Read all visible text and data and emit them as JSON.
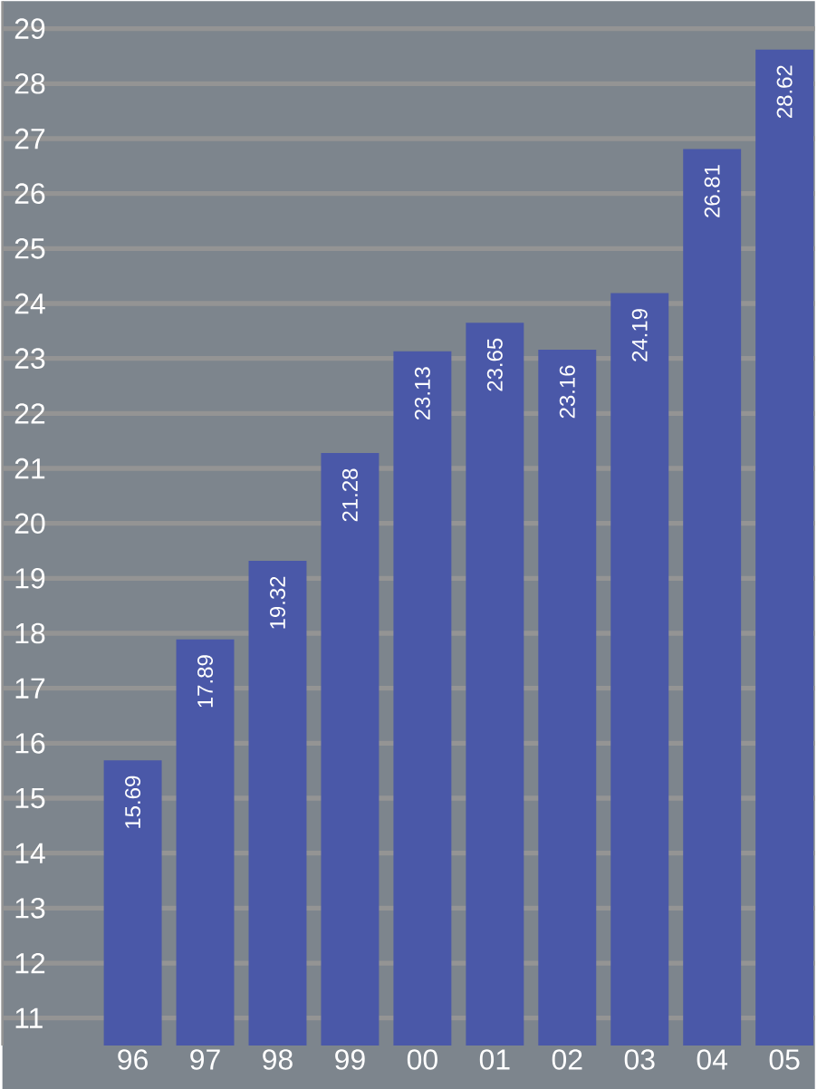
{
  "chart_data": {
    "type": "bar",
    "categories": [
      "96",
      "97",
      "98",
      "99",
      "00",
      "01",
      "02",
      "03",
      "04",
      "05"
    ],
    "values": [
      15.69,
      17.89,
      19.32,
      21.28,
      23.13,
      23.65,
      23.16,
      24.19,
      26.81,
      28.62
    ],
    "color": "#4a58a8",
    "data_labels": true,
    "grid": "y",
    "ylim": [
      10.5,
      29.5
    ],
    "yticks": [
      11,
      12,
      13,
      14,
      15,
      16,
      17,
      18,
      19,
      20,
      21,
      22,
      23,
      24,
      25,
      26,
      27,
      28,
      29
    ]
  }
}
